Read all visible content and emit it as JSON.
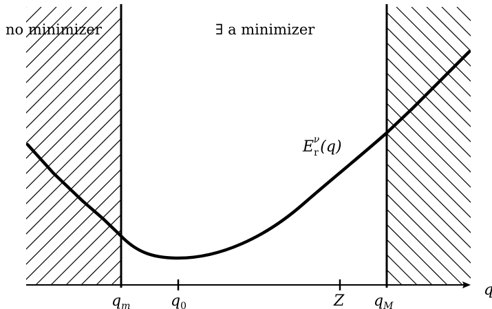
{
  "labels": {
    "left_region": "no minimizer",
    "middle_region": "∃ a minimizer",
    "curve": {
      "base": "E",
      "sub": "r",
      "sup": "ν",
      "arg": "(q)"
    },
    "axis_var": "q"
  },
  "ticks": [
    {
      "id": "qm",
      "base": "q",
      "sub": "m",
      "sub_italic": true
    },
    {
      "id": "q0",
      "base": "q",
      "sub": "0",
      "sub_italic": false
    },
    {
      "id": "Z",
      "base": "Z",
      "sub": "",
      "sub_italic": false
    },
    {
      "id": "qM",
      "base": "q",
      "sub": "M",
      "sub_italic": true
    }
  ],
  "colors": {
    "ink": "#000000",
    "background": "#ffffff"
  }
}
